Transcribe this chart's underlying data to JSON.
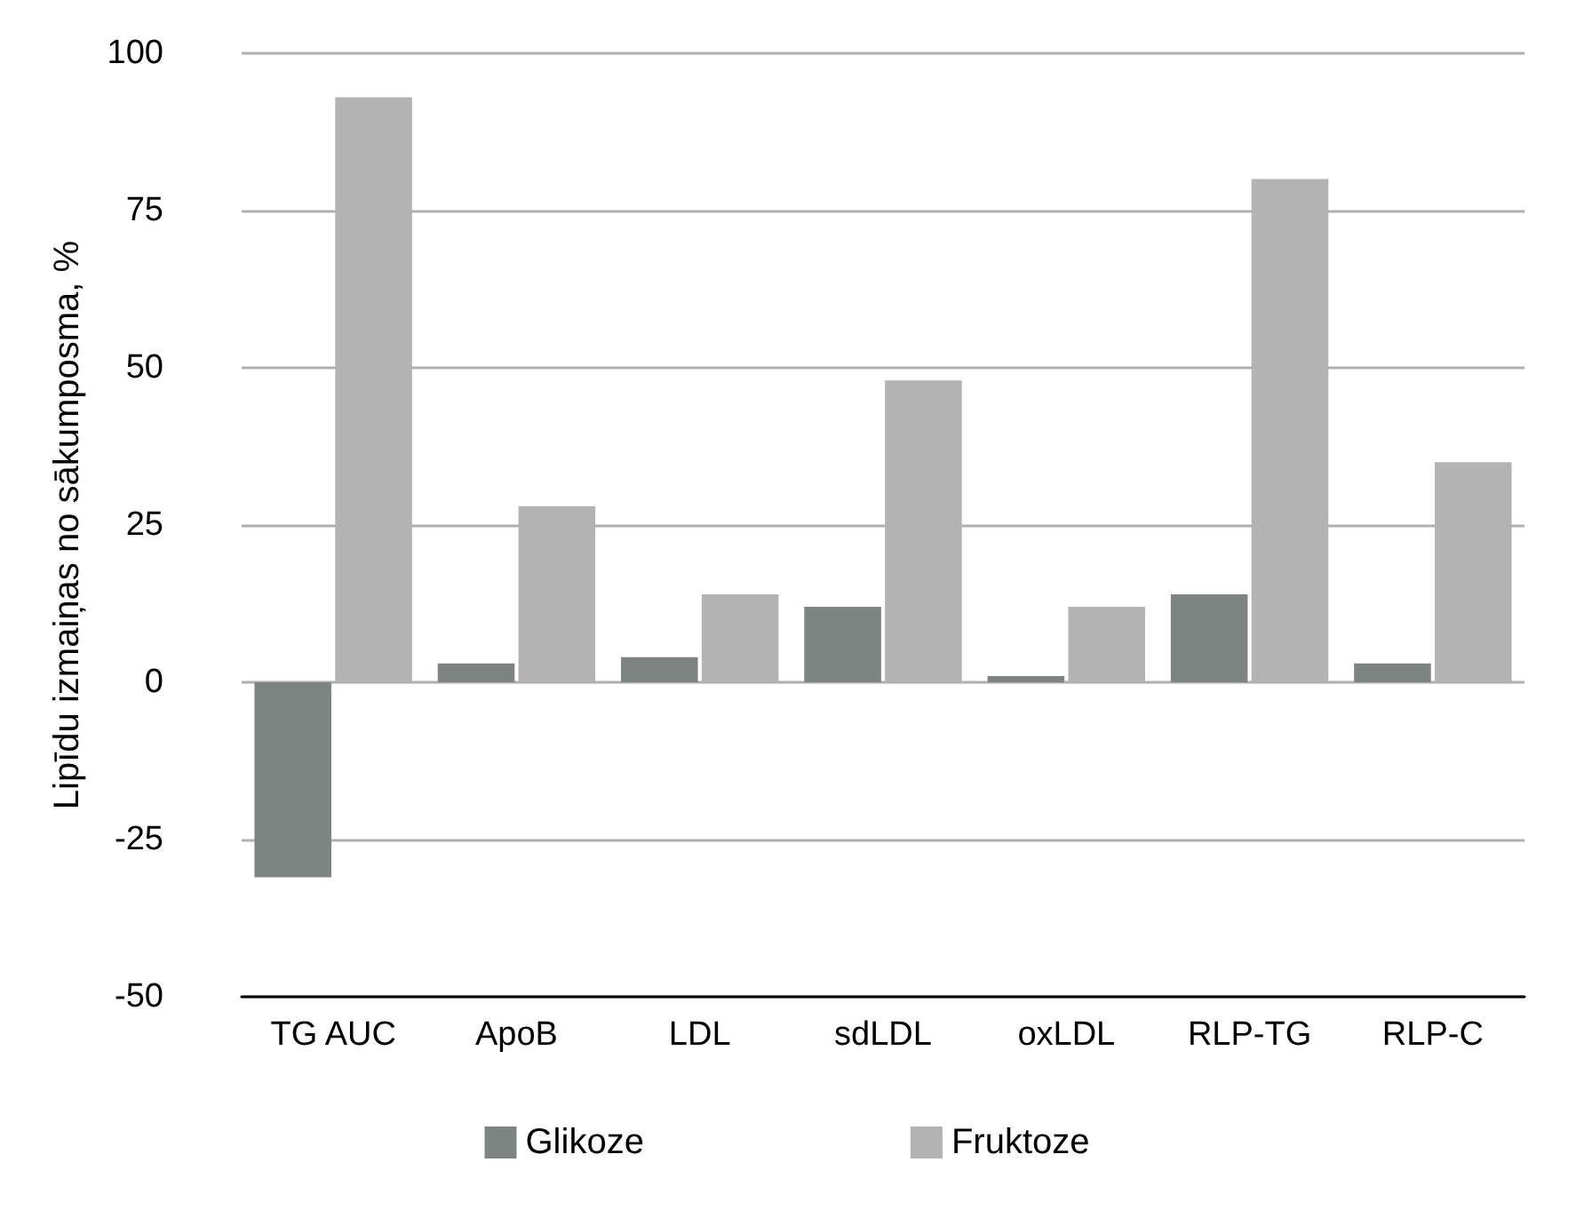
{
  "chart_data": {
    "type": "bar",
    "ylabel": "Lipīdu izmaiņas no sākumposma, %",
    "categories": [
      "TG AUC",
      "ApoB",
      "LDL",
      "sdLDL",
      "oxLDL",
      "RLP-TG",
      "RLP-C"
    ],
    "series": [
      {
        "name": "Glikoze",
        "color": "#7e8481",
        "values": [
          -31,
          3,
          4,
          12,
          1,
          14,
          3
        ]
      },
      {
        "name": "Fruktoze",
        "color": "#b3b3b3",
        "values": [
          93,
          28,
          14,
          48,
          12,
          80,
          35
        ]
      }
    ],
    "ylim": [
      -50,
      100
    ],
    "yticks": [
      -50,
      -25,
      0,
      25,
      50,
      75,
      100
    ],
    "grid": "y",
    "legend": "bottom"
  }
}
